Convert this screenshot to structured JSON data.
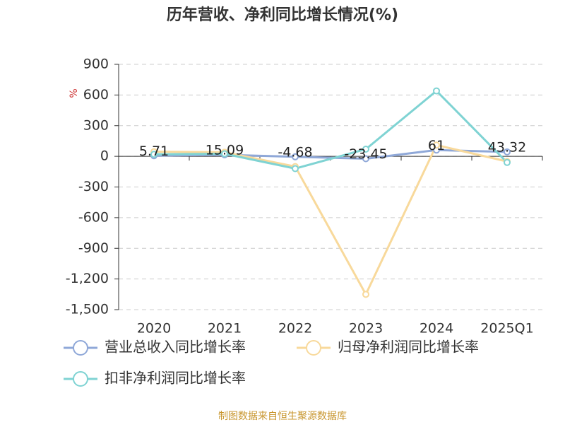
{
  "chart_data": {
    "type": "line",
    "title": "历年营收、净利同比增长情况(%)",
    "y_label": "%",
    "categories": [
      "2020",
      "2021",
      "2022",
      "2023",
      "2024",
      "2025Q1"
    ],
    "series": [
      {
        "name": "营业总收入同比增长率",
        "color": "#8fa8d8",
        "values": [
          5.71,
          15.09,
          -4.68,
          -23.45,
          61,
          43.32
        ],
        "show_labels": true
      },
      {
        "name": "归母净利润同比增长率",
        "color": "#f8d99b",
        "values": [
          45,
          40,
          -100,
          -1350,
          110,
          -50
        ]
      },
      {
        "name": "扣非净利润同比增长率",
        "color": "#7fd3d3",
        "values": [
          20,
          25,
          -120,
          70,
          640,
          -60
        ]
      }
    ],
    "ylim": [
      -1500,
      900
    ],
    "yticks": [
      {
        "value": -1500,
        "label": "-1,500"
      },
      {
        "value": -1200,
        "label": "-1,200"
      },
      -900,
      -600,
      -300,
      0,
      300,
      600,
      900
    ],
    "grid": true,
    "source": "制图数据来自恒生聚源数据库"
  }
}
